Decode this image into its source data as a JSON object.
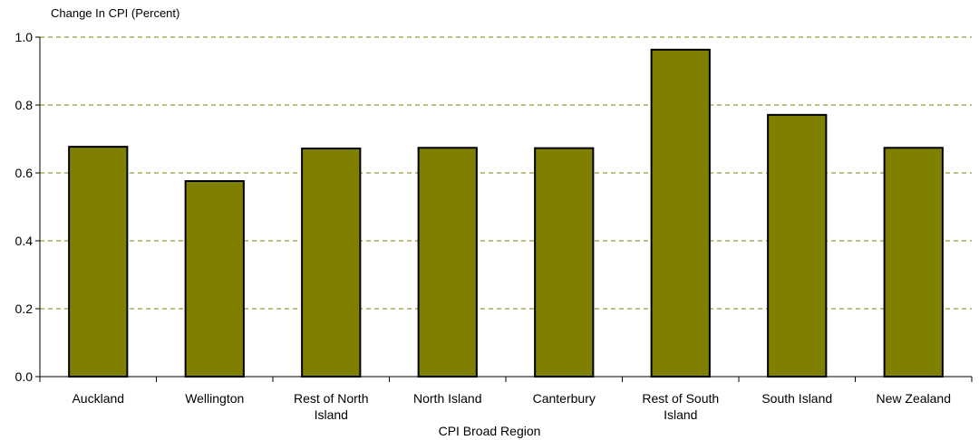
{
  "chart_data": {
    "type": "bar",
    "ylabel": "Change In CPI (Percent)",
    "xlabel": "CPI Broad Region",
    "categories": [
      "Auckland",
      "Wellington",
      "Rest of North Island",
      "North Island",
      "Canterbury",
      "Rest of South Island",
      "South Island",
      "New Zealand"
    ],
    "category_label_lines": [
      [
        "Auckland"
      ],
      [
        "Wellington"
      ],
      [
        "Rest of North",
        "Island"
      ],
      [
        "North Island"
      ],
      [
        "Canterbury"
      ],
      [
        "Rest of South",
        "Island"
      ],
      [
        "South Island"
      ],
      [
        "New Zealand"
      ]
    ],
    "values": [
      0.677,
      0.576,
      0.672,
      0.674,
      0.673,
      0.963,
      0.771,
      0.674
    ],
    "ylim": [
      0.0,
      1.0
    ],
    "yticks": [
      "0.0",
      "0.2",
      "0.4",
      "0.6",
      "0.8",
      "1.0"
    ],
    "grid": true,
    "legend": "none",
    "colors": {
      "bar_fill": "#808000",
      "bar_stroke": "#000000",
      "grid": "#808000"
    }
  }
}
